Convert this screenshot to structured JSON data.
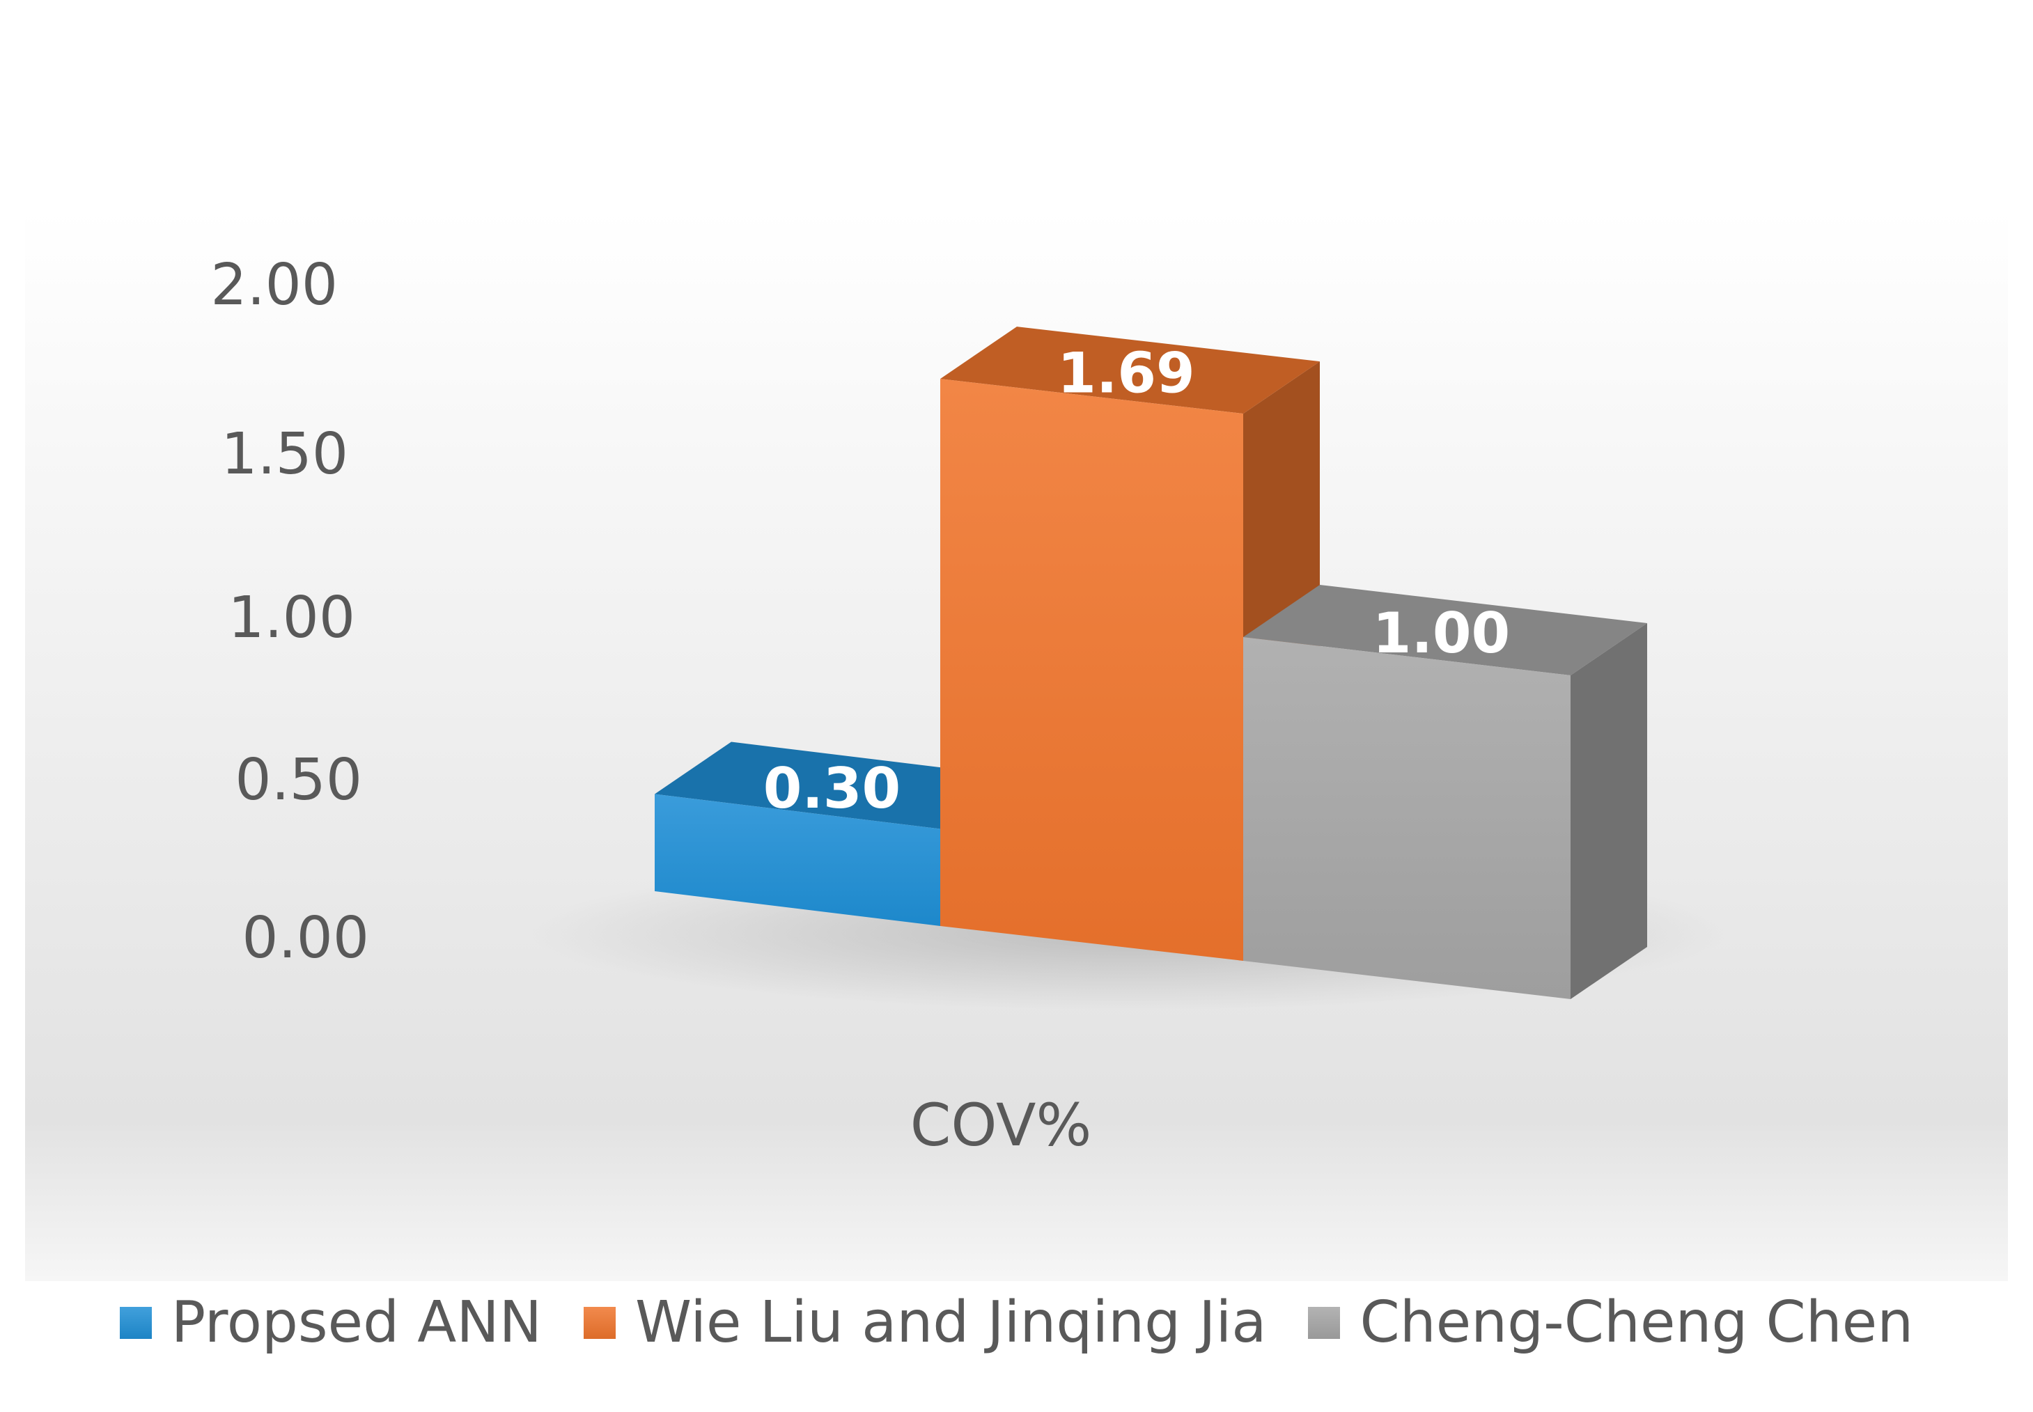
{
  "chart_data": {
    "type": "bar",
    "style": "3d-column",
    "categories": [
      "COV%"
    ],
    "series": [
      {
        "name": "Propsed ANN",
        "values": [
          0.3
        ],
        "color": "#1f8fd6",
        "label": "0.30"
      },
      {
        "name": "Wie Liu and Jinqing Jia",
        "values": [
          1.69
        ],
        "color": "#f0752d",
        "label": "1.69"
      },
      {
        "name": "Cheng-Cheng Chen",
        "values": [
          1.0
        ],
        "color": "#a6a6a6",
        "label": "1.00"
      }
    ],
    "yticks": [
      "2.00",
      "1.50",
      "1.00",
      "0.50",
      "0.00"
    ],
    "ylim": [
      0,
      2
    ],
    "grid": false,
    "legend_position": "bottom"
  }
}
